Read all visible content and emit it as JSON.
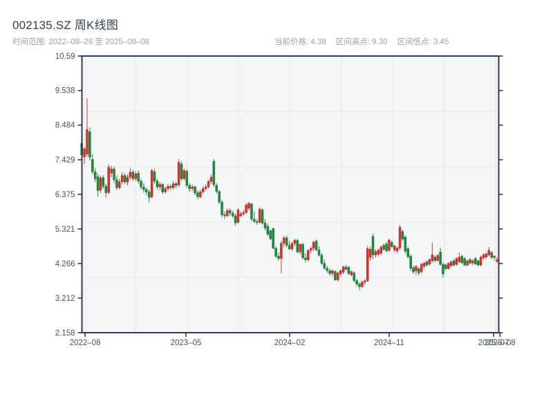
{
  "header": {
    "title": "002135.SZ 周K线图",
    "subtitle": "时间范围: 2022–08–26 至 2025–08–08",
    "stats": [
      "当前价格: 4.38",
      "区间高点: 9.30",
      "区间低点: 3.45"
    ]
  },
  "chart_data": {
    "type": "candlestick",
    "symbol": "002135.SZ",
    "interval": "weekly",
    "title": "002135.SZ 周K线图",
    "date_range": {
      "start": "2022-08-26",
      "end": "2025-08-08"
    },
    "current_price": 4.38,
    "range_high": 9.3,
    "range_low": 3.45,
    "legend": "none",
    "grid": true,
    "colors": {
      "up": "#d4342c",
      "up_edge": "#b02a22",
      "down": "#1f8b3e",
      "down_edge": "#166a2f",
      "spine": "#2e3a4d",
      "grid": "#e6e8ec",
      "plot_bg": "#f5f6f8",
      "tick_label": "#4a5260"
    },
    "y_axis": {
      "min": 2.158,
      "max": 10.59,
      "ticks": [
        {
          "v": 2.158,
          "label": "2.158"
        },
        {
          "v": 3.212,
          "label": "3.212"
        },
        {
          "v": 4.266,
          "label": "4.266"
        },
        {
          "v": 5.321,
          "label": "5.321"
        },
        {
          "v": 6.375,
          "label": "6.375"
        },
        {
          "v": 7.429,
          "label": "7.429"
        },
        {
          "v": 8.484,
          "label": "8.484"
        },
        {
          "v": 9.538,
          "label": "9.538"
        },
        {
          "v": 10.59,
          "label": "10.59"
        }
      ]
    },
    "x_axis": {
      "ticks": [
        {
          "label": "2022–08",
          "f": 0.008
        },
        {
          "label": "2023–05",
          "f": 0.251
        },
        {
          "label": "2024–02",
          "f": 0.5007
        },
        {
          "label": "2024–11",
          "f": 0.7403
        },
        {
          "label": "2025–07",
          "f": 0.9917
        },
        {
          "label": "2025–08",
          "f": 1.0072
        }
      ]
    },
    "candles": [
      [
        7.93,
        8.05,
        7.48,
        7.58
      ],
      [
        7.52,
        7.82,
        7.3,
        7.76
      ],
      [
        7.6,
        9.3,
        7.52,
        8.35
      ],
      [
        8.28,
        8.42,
        7.4,
        7.51
      ],
      [
        7.44,
        7.6,
        6.98,
        7.06
      ],
      [
        7.06,
        7.18,
        6.75,
        6.85
      ],
      [
        6.91,
        7.0,
        6.3,
        6.49
      ],
      [
        6.5,
        6.95,
        6.42,
        6.88
      ],
      [
        6.88,
        6.96,
        6.55,
        6.62
      ],
      [
        6.62,
        6.7,
        6.28,
        6.42
      ],
      [
        6.43,
        7.28,
        6.38,
        7.2
      ],
      [
        7.02,
        7.25,
        6.9,
        7.15
      ],
      [
        7.15,
        7.22,
        6.72,
        6.82
      ],
      [
        6.82,
        6.95,
        6.5,
        6.58
      ],
      [
        6.58,
        6.85,
        6.52,
        6.76
      ],
      [
        6.76,
        7.05,
        6.68,
        6.95
      ],
      [
        6.95,
        7.02,
        6.68,
        6.75
      ],
      [
        6.75,
        6.98,
        6.65,
        6.9
      ],
      [
        6.9,
        7.18,
        6.82,
        7.05
      ],
      [
        7.05,
        7.12,
        6.78,
        6.85
      ],
      [
        6.85,
        7.08,
        6.78,
        7.0
      ],
      [
        7.02,
        7.1,
        6.7,
        6.78
      ],
      [
        6.78,
        6.85,
        6.52,
        6.6
      ],
      [
        6.6,
        6.72,
        6.42,
        6.52
      ],
      [
        6.52,
        6.58,
        6.35,
        6.45
      ],
      [
        6.45,
        6.52,
        6.12,
        6.28
      ],
      [
        6.3,
        7.15,
        6.25,
        7.1
      ],
      [
        7.06,
        7.15,
        6.7,
        6.78
      ],
      [
        6.78,
        6.85,
        6.52,
        6.6
      ],
      [
        6.6,
        6.75,
        6.5,
        6.68
      ],
      [
        6.68,
        6.72,
        6.38,
        6.45
      ],
      [
        6.45,
        6.62,
        6.4,
        6.55
      ],
      [
        6.55,
        6.7,
        6.48,
        6.62
      ],
      [
        6.62,
        6.68,
        6.5,
        6.58
      ],
      [
        6.58,
        6.78,
        6.52,
        6.7
      ],
      [
        6.7,
        6.75,
        6.55,
        6.65
      ],
      [
        6.66,
        7.45,
        6.6,
        7.35
      ],
      [
        7.3,
        7.38,
        6.78,
        6.85
      ],
      [
        6.85,
        7.15,
        6.8,
        7.1
      ],
      [
        7.08,
        7.12,
        6.58,
        6.65
      ],
      [
        6.65,
        6.72,
        6.45,
        6.55
      ],
      [
        6.55,
        6.68,
        6.48,
        6.6
      ],
      [
        6.6,
        6.65,
        6.35,
        6.42
      ],
      [
        6.42,
        6.5,
        6.22,
        6.3
      ],
      [
        6.3,
        6.52,
        6.25,
        6.45
      ],
      [
        6.45,
        6.62,
        6.4,
        6.55
      ],
      [
        6.55,
        6.68,
        6.5,
        6.6
      ],
      [
        6.6,
        6.82,
        6.55,
        6.77
      ],
      [
        6.77,
        6.98,
        6.7,
        6.9
      ],
      [
        7.38,
        7.45,
        6.6,
        6.67
      ],
      [
        6.65,
        6.72,
        6.4,
        6.46
      ],
      [
        6.46,
        6.52,
        6.08,
        6.14
      ],
      [
        6.14,
        6.2,
        5.68,
        5.75
      ],
      [
        5.75,
        5.85,
        5.62,
        5.72
      ],
      [
        5.72,
        5.95,
        5.68,
        5.88
      ],
      [
        5.88,
        5.95,
        5.72,
        5.8
      ],
      [
        5.8,
        5.88,
        5.65,
        5.72
      ],
      [
        5.72,
        5.78,
        5.42,
        5.5
      ],
      [
        5.52,
        5.95,
        5.48,
        5.9
      ],
      [
        5.72,
        5.85,
        5.68,
        5.78
      ],
      [
        5.78,
        5.9,
        5.72,
        5.82
      ],
      [
        5.82,
        6.1,
        5.78,
        6.05
      ],
      [
        5.95,
        6.15,
        5.88,
        6.1
      ],
      [
        6.08,
        6.12,
        5.55,
        5.62
      ],
      [
        5.62,
        5.86,
        5.5,
        5.55
      ],
      [
        5.55,
        5.62,
        5.45,
        5.52
      ],
      [
        5.52,
        5.98,
        5.48,
        5.92
      ],
      [
        5.9,
        5.95,
        5.45,
        5.5
      ],
      [
        5.5,
        5.62,
        5.28,
        5.35
      ],
      [
        5.4,
        5.48,
        5.1,
        5.16
      ],
      [
        5.26,
        5.3,
        4.98,
        5.02
      ],
      [
        5.33,
        5.36,
        4.7,
        4.73
      ],
      [
        4.73,
        4.8,
        4.42,
        4.49
      ],
      [
        4.49,
        4.6,
        4.35,
        4.42
      ],
      [
        4.42,
        4.95,
        3.96,
        4.88
      ],
      [
        4.88,
        5.1,
        4.78,
        5.05
      ],
      [
        5.05,
        5.12,
        4.75,
        4.82
      ],
      [
        4.82,
        4.95,
        4.68,
        4.71
      ],
      [
        4.71,
        4.92,
        4.65,
        4.88
      ],
      [
        4.88,
        5.02,
        4.8,
        4.97
      ],
      [
        4.97,
        5.02,
        4.58,
        4.62
      ],
      [
        4.62,
        4.88,
        4.55,
        4.85
      ],
      [
        4.85,
        4.9,
        4.4,
        4.44
      ],
      [
        4.44,
        4.58,
        4.3,
        4.38
      ],
      [
        4.38,
        4.7,
        4.32,
        4.67
      ],
      [
        4.67,
        4.78,
        4.58,
        4.73
      ],
      [
        4.73,
        4.96,
        4.65,
        4.92
      ],
      [
        4.95,
        5.0,
        4.65,
        4.68
      ],
      [
        4.68,
        4.8,
        4.48,
        4.52
      ],
      [
        4.52,
        4.58,
        4.22,
        4.27
      ],
      [
        4.27,
        4.38,
        4.08,
        4.12
      ],
      [
        4.12,
        4.2,
        3.98,
        4.05
      ],
      [
        4.05,
        4.12,
        3.9,
        3.96
      ],
      [
        3.96,
        4.08,
        3.88,
        4.05
      ],
      [
        4.02,
        4.06,
        3.74,
        3.77
      ],
      [
        3.77,
        4.02,
        3.72,
        3.98
      ],
      [
        3.95,
        4.08,
        3.88,
        4.05
      ],
      [
        4.0,
        4.2,
        3.95,
        4.16
      ],
      [
        4.16,
        4.22,
        4.05,
        4.09
      ],
      [
        4.15,
        4.2,
        3.92,
        3.96
      ],
      [
        3.92,
        4.05,
        3.88,
        4.02
      ],
      [
        3.98,
        4.02,
        3.7,
        3.75
      ],
      [
        3.75,
        3.8,
        3.58,
        3.64
      ],
      [
        3.64,
        3.7,
        3.45,
        3.56
      ],
      [
        3.56,
        3.75,
        3.52,
        3.7
      ],
      [
        3.7,
        3.8,
        3.62,
        3.74
      ],
      [
        3.74,
        4.8,
        3.7,
        4.72
      ],
      [
        4.45,
        4.78,
        4.35,
        4.7
      ],
      [
        5.09,
        5.18,
        4.4,
        4.53
      ],
      [
        4.53,
        4.7,
        4.45,
        4.63
      ],
      [
        4.55,
        4.72,
        4.48,
        4.67
      ],
      [
        4.58,
        4.82,
        4.52,
        4.77
      ],
      [
        4.82,
        4.88,
        4.66,
        4.7
      ],
      [
        4.86,
        4.92,
        4.6,
        4.65
      ],
      [
        4.67,
        5.02,
        4.62,
        4.98
      ],
      [
        4.91,
        4.96,
        4.74,
        4.78
      ],
      [
        4.68,
        4.84,
        4.62,
        4.8
      ],
      [
        4.65,
        4.78,
        4.58,
        4.74
      ],
      [
        4.74,
        5.44,
        4.68,
        5.37
      ],
      [
        5.24,
        5.3,
        4.96,
        5.01
      ],
      [
        5.07,
        5.12,
        4.58,
        4.64
      ],
      [
        4.72,
        4.78,
        4.42,
        4.47
      ],
      [
        4.49,
        4.55,
        4.05,
        4.12
      ],
      [
        4.14,
        4.2,
        3.95,
        4.01
      ],
      [
        4.04,
        4.22,
        3.92,
        4.18
      ],
      [
        4.11,
        4.16,
        3.9,
        3.98
      ],
      [
        4.02,
        4.28,
        3.96,
        4.25
      ],
      [
        4.18,
        4.32,
        4.12,
        4.28
      ],
      [
        4.32,
        4.36,
        4.18,
        4.22
      ],
      [
        4.25,
        4.42,
        4.2,
        4.39
      ],
      [
        4.35,
        4.91,
        4.3,
        4.53
      ],
      [
        4.46,
        4.52,
        4.3,
        4.36
      ],
      [
        4.36,
        4.56,
        4.32,
        4.51
      ],
      [
        4.62,
        4.75,
        4.2,
        4.24
      ],
      [
        4.24,
        4.3,
        3.84,
        3.95
      ],
      [
        4.22,
        4.26,
        4.05,
        4.11
      ],
      [
        4.11,
        4.3,
        4.08,
        4.27
      ],
      [
        4.2,
        4.35,
        4.15,
        4.32
      ],
      [
        4.35,
        4.4,
        4.18,
        4.22
      ],
      [
        4.24,
        4.45,
        4.2,
        4.42
      ],
      [
        4.32,
        4.6,
        4.28,
        4.46
      ],
      [
        4.49,
        4.54,
        4.25,
        4.29
      ],
      [
        4.42,
        4.46,
        4.18,
        4.22
      ],
      [
        4.22,
        4.38,
        4.18,
        4.35
      ],
      [
        4.39,
        4.44,
        4.24,
        4.28
      ],
      [
        4.28,
        4.4,
        4.22,
        4.35
      ],
      [
        4.42,
        4.46,
        4.22,
        4.25
      ],
      [
        4.35,
        4.38,
        4.18,
        4.22
      ],
      [
        4.22,
        4.5,
        4.18,
        4.46
      ],
      [
        4.44,
        4.58,
        4.38,
        4.53
      ],
      [
        4.46,
        4.6,
        4.42,
        4.56
      ],
      [
        4.53,
        4.77,
        4.48,
        4.67
      ],
      [
        4.6,
        4.65,
        4.4,
        4.45
      ],
      [
        4.45,
        4.52,
        4.36,
        4.49
      ],
      [
        4.33,
        4.46,
        4.28,
        4.38
      ]
    ]
  }
}
